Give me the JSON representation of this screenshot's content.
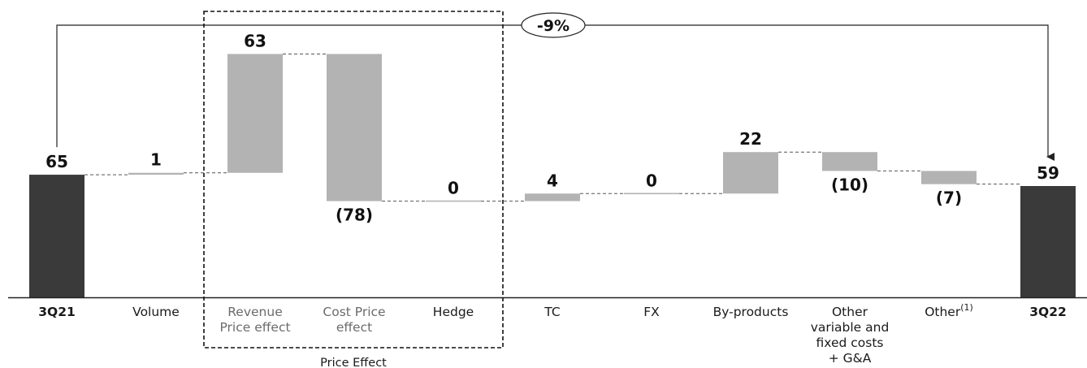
{
  "colors": {
    "total": "#3a3a3a",
    "delta": "#b3b3b3",
    "axis": "#222222",
    "connector": "#555555"
  },
  "chart_data": {
    "type": "waterfall",
    "categories": [
      "3Q21",
      "Volume",
      "Revenue\nPrice effect",
      "Cost Price\neffect",
      "Hedge",
      "TC",
      "FX",
      "By-products",
      "Other\nvariable and\nfixed costs\n+ G&A",
      "Other",
      "3Q22"
    ],
    "category_superscripts": [
      "",
      "",
      "",
      "",
      "",
      "",
      "",
      "",
      "",
      "(1)",
      ""
    ],
    "values": [
      65,
      1,
      63,
      -78,
      0,
      4,
      0,
      22,
      -10,
      -7,
      59
    ],
    "labels": [
      "65",
      "1",
      "63",
      "(78)",
      "0",
      "4",
      "0",
      "22",
      "(10)",
      "(7)",
      "59"
    ],
    "kinds": [
      "total",
      "delta",
      "delta",
      "delta",
      "delta",
      "delta",
      "delta",
      "delta",
      "delta",
      "delta",
      "total"
    ],
    "group": {
      "label": "Price Effect",
      "categories": [
        "Revenue\nPrice effect",
        "Cost Price\neffect",
        "Hedge"
      ]
    },
    "change_label": "-9%",
    "legend": "none",
    "grid": false
  }
}
